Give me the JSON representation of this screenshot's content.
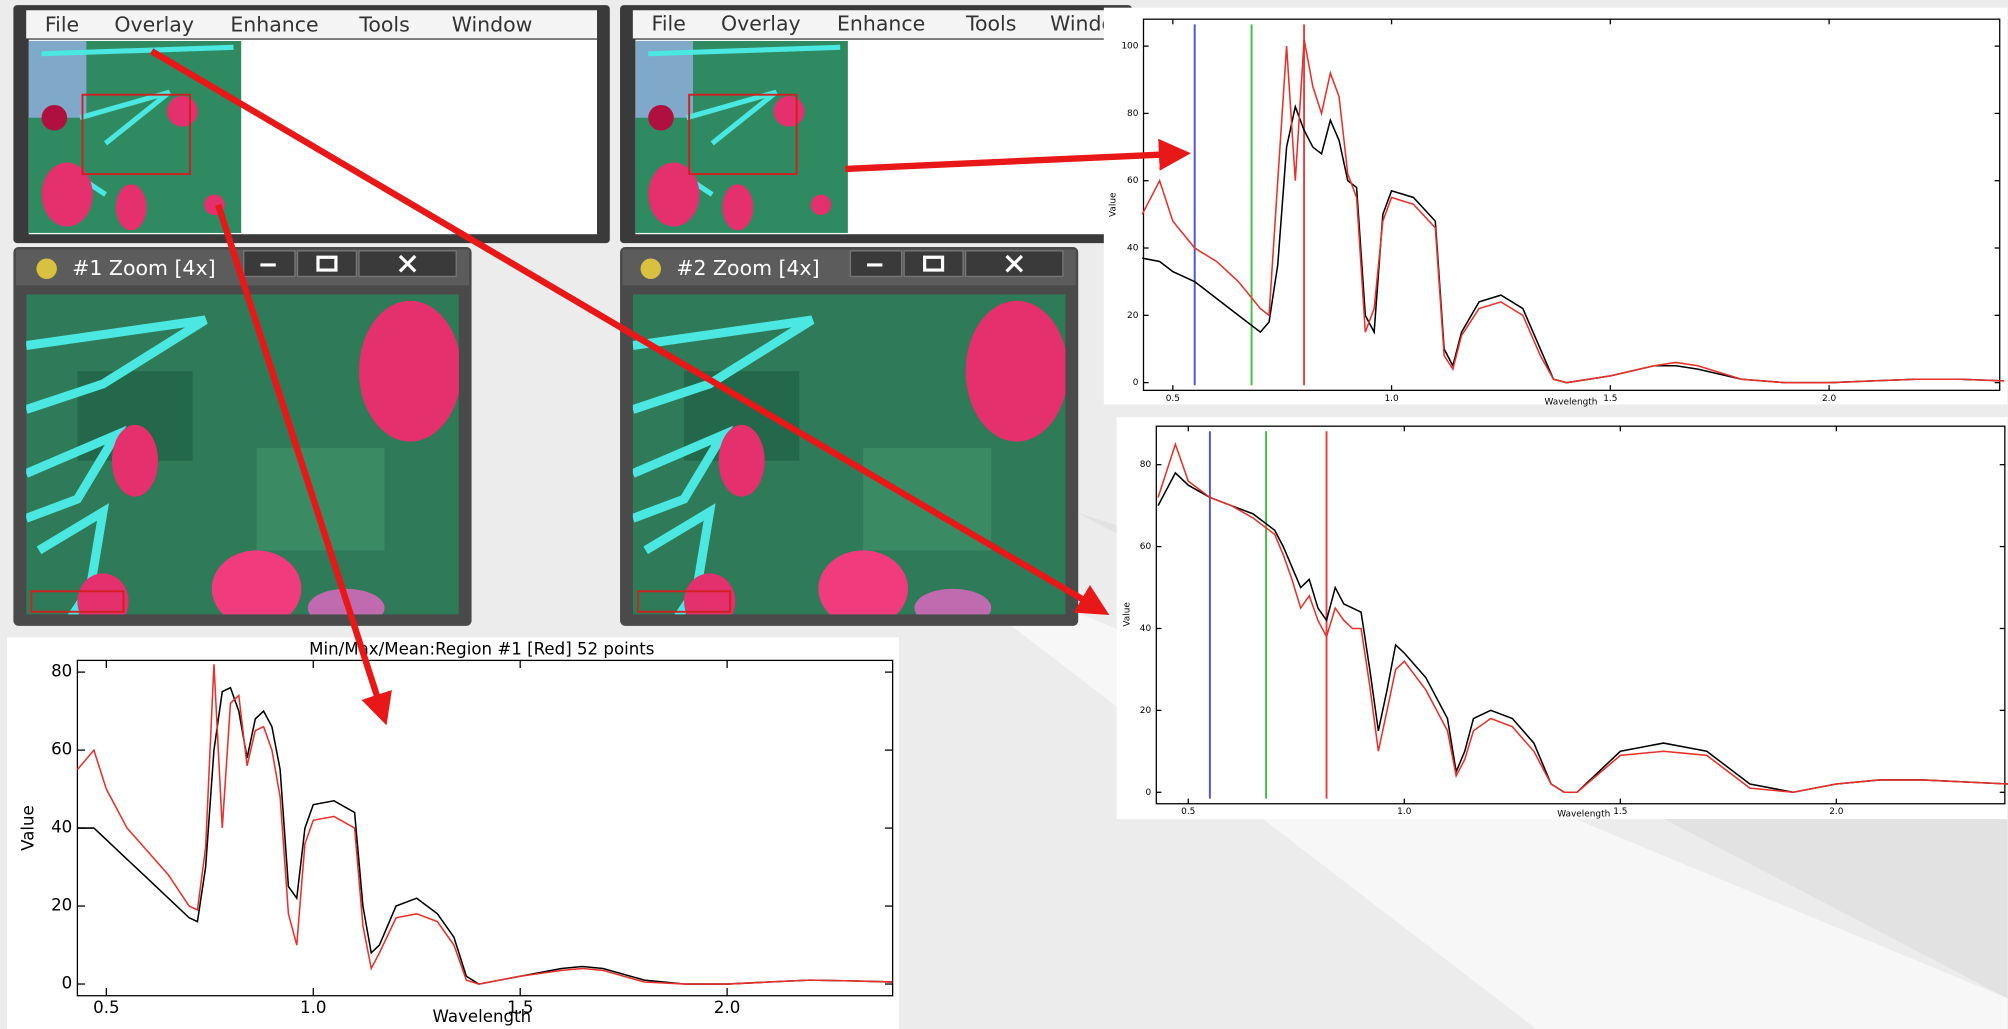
{
  "windows": [
    {
      "menu": [
        "File",
        "Overlay",
        "Enhance",
        "Tools",
        "Window"
      ]
    },
    {
      "menu": [
        "File",
        "Overlay",
        "Enhance",
        "Tools",
        "Window"
      ]
    }
  ],
  "zoom_windows": [
    {
      "title": "#1 Zoom [4x]"
    },
    {
      "title": "#2 Zoom [4x]"
    }
  ],
  "chart_data": [
    {
      "type": "line",
      "title": "Min/Max/Mean:Region #1 [Red] 52 points",
      "x_label": "Wavelength",
      "y_label": "Value",
      "x": [
        0.43,
        0.47,
        0.5,
        0.55,
        0.6,
        0.65,
        0.7,
        0.72,
        0.74,
        0.76,
        0.78,
        0.8,
        0.82,
        0.84,
        0.86,
        0.88,
        0.9,
        0.92,
        0.94,
        0.96,
        0.98,
        1.0,
        1.05,
        1.1,
        1.12,
        1.14,
        1.16,
        1.2,
        1.25,
        1.3,
        1.34,
        1.37,
        1.4,
        1.5,
        1.6,
        1.65,
        1.7,
        1.8,
        1.9,
        2.0,
        2.1,
        2.2,
        2.3,
        2.4
      ],
      "series": [
        {
          "color": "#000000",
          "values": [
            40,
            40,
            37,
            32,
            27,
            22,
            17,
            16,
            30,
            60,
            75,
            76,
            70,
            58,
            68,
            70,
            66,
            55,
            25,
            22,
            40,
            46,
            47,
            44,
            20,
            8,
            10,
            20,
            22,
            18,
            12,
            2,
            0,
            2,
            4,
            4.5,
            4,
            1,
            0,
            0,
            0.5,
            1,
            0.8,
            0.5
          ]
        },
        {
          "color": "#e8302a",
          "values": [
            55,
            60,
            50,
            40,
            34,
            28,
            20,
            19,
            35,
            82,
            40,
            72,
            74,
            56,
            65,
            66,
            60,
            48,
            18,
            10,
            36,
            42,
            43,
            40,
            15,
            4,
            8,
            17,
            18,
            16,
            10,
            1,
            0,
            2,
            3.5,
            4,
            3.5,
            0.5,
            0,
            0,
            0.5,
            1,
            0.8,
            0.5
          ]
        }
      ],
      "xlim": [
        0.43,
        2.4
      ],
      "ylim": [
        -3,
        83
      ],
      "xticks": [
        0.5,
        {
          "value": 1.0,
          "label": "1.0"
        },
        1.5,
        {
          "value": 2.0,
          "label": "2.0"
        }
      ],
      "yticks": [
        0,
        20,
        40,
        60,
        80
      ]
    },
    {
      "type": "line",
      "x_label": "Wavelength",
      "y_label": "Value",
      "x": [
        0.43,
        0.47,
        0.5,
        0.55,
        0.6,
        0.65,
        0.7,
        0.72,
        0.74,
        0.76,
        0.78,
        0.8,
        0.82,
        0.84,
        0.86,
        0.88,
        0.9,
        0.92,
        0.94,
        0.96,
        0.98,
        1.0,
        1.05,
        1.1,
        1.12,
        1.14,
        1.16,
        1.2,
        1.25,
        1.3,
        1.34,
        1.37,
        1.4,
        1.5,
        1.6,
        1.65,
        1.7,
        1.8,
        1.9,
        2.0,
        2.1,
        2.2,
        2.3,
        2.4
      ],
      "series": [
        {
          "color": "#000000",
          "values": [
            37,
            36,
            33,
            30,
            25,
            20,
            15,
            18,
            35,
            70,
            82,
            75,
            70,
            68,
            78,
            72,
            60,
            58,
            20,
            15,
            50,
            57,
            55,
            48,
            10,
            5,
            15,
            24,
            26,
            22,
            10,
            1,
            0,
            2,
            5,
            5,
            4,
            1,
            0,
            0,
            0.5,
            1,
            1,
            0.5
          ]
        },
        {
          "color": "#e8302a",
          "values": [
            50,
            60,
            48,
            40,
            36,
            30,
            22,
            20,
            60,
            100,
            60,
            102,
            88,
            80,
            92,
            85,
            62,
            55,
            15,
            22,
            48,
            55,
            53,
            46,
            8,
            4,
            14,
            22,
            24,
            20,
            8,
            1,
            0,
            2,
            5,
            6,
            5,
            1,
            0,
            0,
            0.5,
            1,
            1,
            0.5
          ]
        }
      ],
      "markers": [
        {
          "value": 0.55,
          "color": "#5050d0"
        },
        {
          "value": 0.68,
          "color": "#40c040"
        },
        {
          "value": 0.8,
          "color": "#e04040"
        }
      ],
      "xlim": [
        0.433,
        2.39
      ],
      "ylim": [
        -2.3,
        108
      ],
      "xticks": [
        0.5,
        {
          "value": 1.0,
          "label": "1.0"
        },
        1.5,
        {
          "value": 2.0,
          "label": "2.0"
        }
      ],
      "yticks": [
        0,
        20,
        40,
        60,
        80,
        100
      ]
    },
    {
      "type": "line",
      "x_label": "Wavelength",
      "y_label": "Value",
      "x": [
        0.43,
        0.47,
        0.5,
        0.55,
        0.6,
        0.65,
        0.7,
        0.72,
        0.74,
        0.76,
        0.78,
        0.8,
        0.82,
        0.84,
        0.86,
        0.88,
        0.9,
        0.92,
        0.94,
        0.96,
        0.98,
        1.0,
        1.05,
        1.1,
        1.12,
        1.14,
        1.16,
        1.2,
        1.25,
        1.3,
        1.34,
        1.37,
        1.4,
        1.5,
        1.6,
        1.65,
        1.7,
        1.8,
        1.9,
        2.0,
        2.1,
        2.2,
        2.3,
        2.4
      ],
      "series": [
        {
          "color": "#000000",
          "values": [
            70,
            78,
            75,
            72,
            70,
            68,
            64,
            60,
            55,
            50,
            52,
            45,
            42,
            50,
            46,
            45,
            44,
            30,
            15,
            25,
            36,
            34,
            28,
            18,
            5,
            10,
            18,
            20,
            18,
            12,
            2,
            0,
            0,
            10,
            12,
            11,
            10,
            2,
            0,
            2,
            3,
            3,
            2.5,
            2
          ]
        },
        {
          "color": "#e8302a",
          "values": [
            72,
            85,
            76,
            72,
            70,
            67,
            63,
            58,
            52,
            45,
            48,
            42,
            38,
            45,
            42,
            40,
            40,
            26,
            10,
            20,
            30,
            32,
            25,
            15,
            4,
            8,
            15,
            18,
            16,
            10,
            2,
            0,
            0,
            9,
            10,
            9.5,
            9,
            1,
            0,
            2,
            3,
            3,
            2.5,
            2
          ]
        }
      ],
      "markers": [
        {
          "value": 0.55,
          "color": "#5050d0"
        },
        {
          "value": 0.68,
          "color": "#40c040"
        },
        {
          "value": 0.82,
          "color": "#e04040"
        }
      ],
      "xlim": [
        0.426,
        2.39
      ],
      "ylim": [
        -2.8,
        89.4
      ],
      "xticks": [
        0.5,
        {
          "value": 1.0,
          "label": "1.0"
        },
        1.5,
        {
          "value": 2.0,
          "label": "2.0"
        }
      ],
      "yticks": [
        0,
        20,
        40,
        60,
        80
      ]
    }
  ]
}
